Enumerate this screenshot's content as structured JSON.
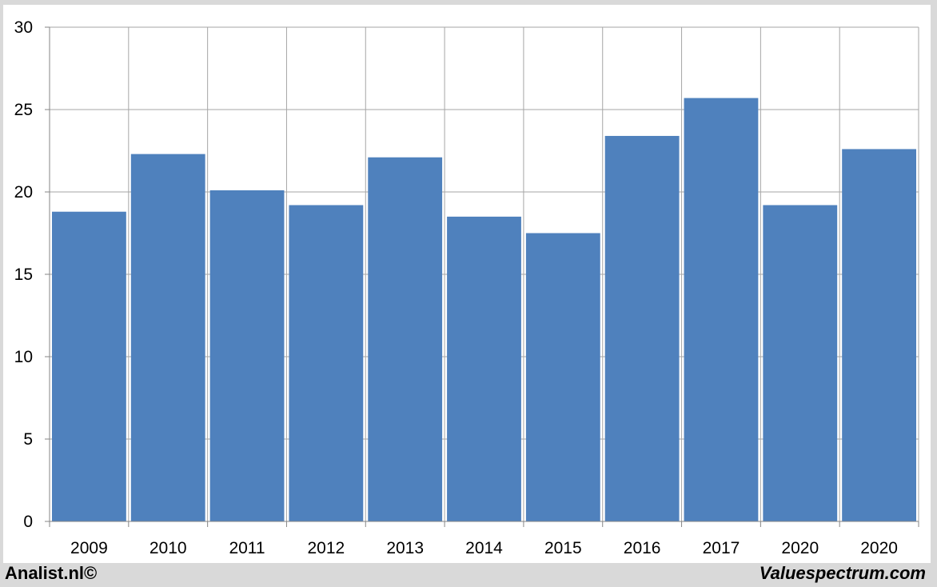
{
  "chart_data": {
    "type": "bar",
    "categories": [
      "2009",
      "2010",
      "2011",
      "2012",
      "2013",
      "2014",
      "2015",
      "2016",
      "2017",
      "2020",
      "2020"
    ],
    "values": [
      18.8,
      22.3,
      20.1,
      19.2,
      22.1,
      18.5,
      17.5,
      23.4,
      25.7,
      19.2,
      22.6
    ],
    "ylim": [
      0,
      30
    ],
    "yticks": [
      0,
      5,
      10,
      15,
      20,
      25,
      30
    ],
    "grid": true,
    "bar_color": "#4f81bd",
    "grid_color": "#a6a6a6"
  },
  "footer": {
    "left_text": "Analist.nl©",
    "right_text": "Valuespectrum.com"
  }
}
